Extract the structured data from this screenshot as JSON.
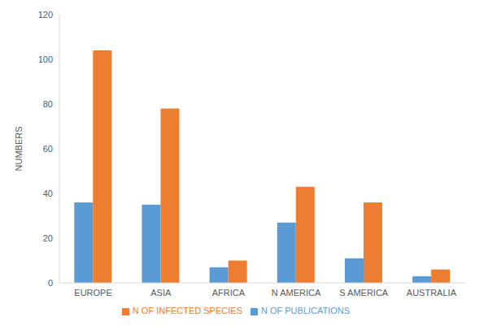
{
  "chart_data": {
    "type": "bar",
    "y_label": "NUMBERS",
    "categories": [
      "EUROPE",
      "ASIA",
      "AFRICA",
      "N AMERICA",
      "S AMERICA",
      "AUSTRALIA"
    ],
    "series": [
      {
        "name": "N OF PUBLICATIONS",
        "color": "#5b9bd5",
        "values": [
          36,
          35,
          7,
          27,
          11,
          3
        ]
      },
      {
        "name": "N OF INFECTED SPECIES",
        "color": "#ed7d31",
        "values": [
          104,
          78,
          10,
          43,
          36,
          6
        ]
      }
    ],
    "ylim": [
      0,
      120
    ],
    "yticks": [
      0,
      20,
      40,
      60,
      80,
      100,
      120
    ],
    "grid": false,
    "legend": "bottom"
  }
}
